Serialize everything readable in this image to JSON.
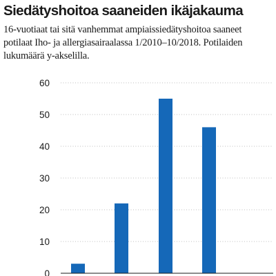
{
  "header": {
    "title": "Siedätyshoitoa saaneiden ikäjakauma",
    "subtitle": "16-vuotiaat tai sitä vanhemmat ampiaissiedätyshoitoa saaneet potilaat Iho- ja allergiasairaalassa 1/2010–10/2018. Potilaiden lukumäärä y-akselilla."
  },
  "chart_data": {
    "type": "bar",
    "title": "Siedätyshoitoa saaneiden ikäjakauma",
    "ylabel": "",
    "xlabel": "",
    "ylim": [
      0,
      60
    ],
    "yticks": [
      0,
      10,
      20,
      30,
      40,
      50,
      60
    ],
    "grid": true,
    "color": "#1568b8",
    "values": [
      3,
      22,
      55,
      46
    ]
  }
}
